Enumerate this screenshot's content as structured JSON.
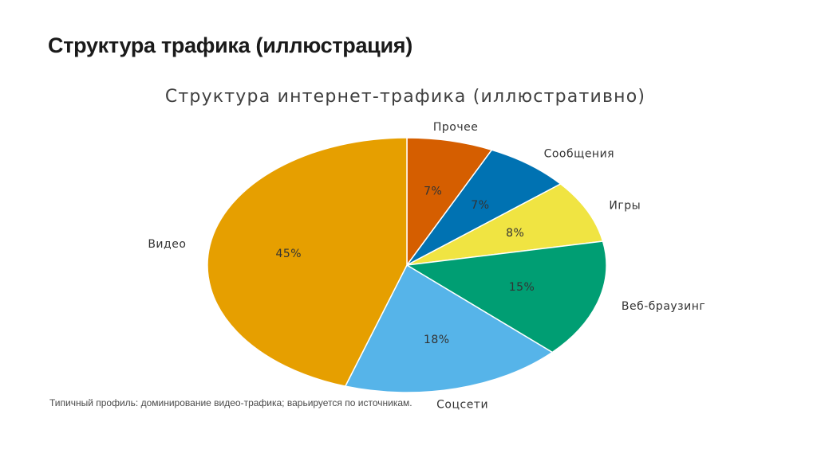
{
  "slide": {
    "title": "Структура трафика (иллюстрация)",
    "caption": "Типичный профиль: доминирование видео-трафика; варьируется по источникам."
  },
  "chart_data": {
    "type": "pie",
    "title": "Структура интернет-трафика (иллюстративно)",
    "legend": "none",
    "slices": [
      {
        "name": "Прочее",
        "value": 7,
        "label": "7%",
        "color": "#d55e00"
      },
      {
        "name": "Сообщения",
        "value": 7,
        "label": "7%",
        "color": "#0072b2"
      },
      {
        "name": "Игры",
        "value": 8,
        "label": "8%",
        "color": "#f0e442"
      },
      {
        "name": "Веб-браузинг",
        "value": 15,
        "label": "15%",
        "color": "#009e73"
      },
      {
        "name": "Соцсети",
        "value": 18,
        "label": "18%",
        "color": "#56b4e9"
      },
      {
        "name": "Видео",
        "value": 45,
        "label": "45%",
        "color": "#e69f00"
      }
    ]
  }
}
